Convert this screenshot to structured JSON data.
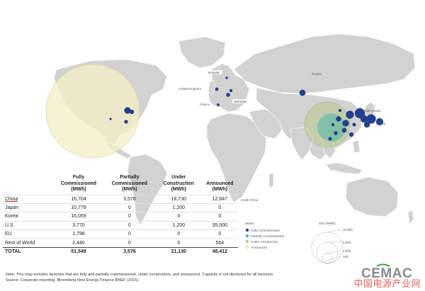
{
  "map": {
    "country_labels": [
      "Norway",
      "United Kingdom",
      "Germany",
      "France",
      "Russia",
      "South Korea",
      "Japan",
      "South Africa"
    ],
    "colors": {
      "land": "#d2d2d2",
      "fully_commissioned": "#243f8f",
      "partially_commissioned": "#48b7a9",
      "under_construction": "#b8c98a",
      "announced": "#f2efc6"
    }
  },
  "legend": {
    "title": "Status",
    "items": [
      {
        "label": "Fully Commissioned",
        "color": "#243f8f"
      },
      {
        "label": "Partially Commissioned",
        "color": "#48b7a9"
      },
      {
        "label": "Under Construction",
        "color": "#b8c98a"
      },
      {
        "label": "Announced",
        "color": "#f2efc6"
      }
    ]
  },
  "size_legend": {
    "title": "Size (MWh)",
    "values": [
      "10,000",
      "5,000",
      "1,000",
      "100"
    ]
  },
  "table": {
    "headers": [
      "Fully Commissioned (MWh)",
      "Partially Commissioned (MWh)",
      "Under Construction (MWh)",
      "Announced (MWh)"
    ],
    "rows": [
      {
        "region": "China",
        "values": [
          "16,704",
          "3,576",
          "18,730",
          "12,847"
        ]
      },
      {
        "region": "Japan",
        "values": [
          "10,778",
          "0",
          "1,200",
          "0"
        ]
      },
      {
        "region": "Korea",
        "values": [
          "16,059",
          "0",
          "0",
          "0"
        ]
      },
      {
        "region": "U.S.",
        "values": [
          "3,770",
          "0",
          "1,200",
          "35,000"
        ]
      },
      {
        "region": "EU",
        "values": [
          "1,798",
          "0",
          "0",
          "0"
        ]
      },
      {
        "region": "Rest of World",
        "values": [
          "2,440",
          "0",
          "0",
          "564"
        ]
      }
    ],
    "total": {
      "region": "TOTAL",
      "values": [
        "51,549",
        "3,576",
        "21,130",
        "48,412"
      ]
    }
  },
  "note": "Note:  This map includes factories that are fully and partially commissioned, under construction, and announced.  Capacity is not disclosed for all factories.",
  "source": "Source:  Corporate reporting.  Bloomberg New Energy Finance BNEF (2015).",
  "logo": "CEMAC",
  "watermark": "中国电源产业网"
}
